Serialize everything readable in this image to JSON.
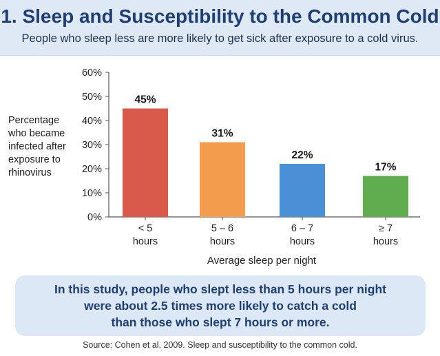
{
  "header": {
    "title": "1. Sleep and Susceptibility to the Common Cold",
    "subtitle": "People who sleep less are more likely to get sick after exposure to a cold virus."
  },
  "chart_data": {
    "type": "bar",
    "categories": [
      [
        "< 5",
        "hours"
      ],
      [
        "5 – 6",
        "hours"
      ],
      [
        "6 – 7",
        "hours"
      ],
      [
        "≥ 7",
        "hours"
      ]
    ],
    "values": [
      45,
      31,
      22,
      17
    ],
    "data_labels": [
      "45%",
      "31%",
      "22%",
      "17%"
    ],
    "colors": [
      "#d9594b",
      "#f39c4e",
      "#4a90d6",
      "#5fad4e"
    ],
    "ylabel_lines": [
      "Percentage",
      "who became",
      "infected after",
      "exposure to",
      "rhinovirus"
    ],
    "xlabel": "Average sleep per night",
    "ylim": [
      0,
      60
    ],
    "yticks": [
      0,
      10,
      20,
      30,
      40,
      50,
      60
    ],
    "ytick_labels": [
      "0%",
      "10%",
      "20%",
      "30%",
      "40%",
      "50%",
      "60%"
    ],
    "grid": false
  },
  "callout": {
    "lines": [
      "In this study, people who slept less than 5 hours per night",
      "were about 2.5 times more likely to catch a cold",
      "than those who slept 7 hours or more."
    ]
  },
  "source": "Source: Cohen et al. 2009. Sleep and susceptibility to the common cold."
}
